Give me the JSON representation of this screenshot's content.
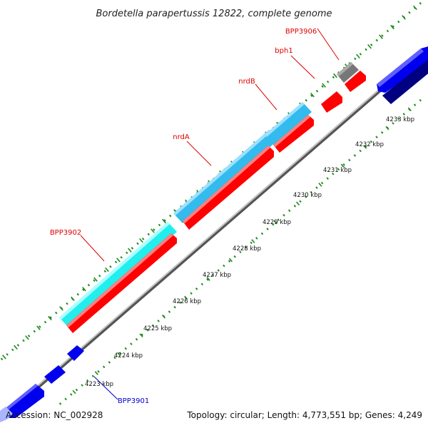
{
  "title": "Bordetella parapertussis 12822, complete genome",
  "accession": "Accession: NC_002928",
  "summary": "Topology: circular; Length: 4,773,551 bp; Genes: 4,249",
  "colors": {
    "backbone": "#888888",
    "tick_marks": "#1e8a1e",
    "forward_feature": "#ff0000",
    "reverse_feature": "#0000ff",
    "reverse_dark": "#000080",
    "gene_cyan": "#33bbee",
    "gene_light_cyan": "#22eeee",
    "gray_feature": "#777777",
    "label_red": "#dd0000",
    "label_blue": "#0000cc"
  },
  "ticks": [
    "4223 kbp",
    "4224 kbp",
    "4225 kbp",
    "4226 kbp",
    "4227 kbp",
    "4228 kbp",
    "4229 kbp",
    "4230 kbp",
    "4231 kbp",
    "4232 kbp",
    "4233 kbp"
  ],
  "labels": {
    "bpp3906": "BPP3906",
    "bph1": "bph1",
    "nrdB": "nrdB",
    "nrdA": "nrdA",
    "bpp3902": "BPP3902",
    "bpp3901": "BPP3901"
  }
}
